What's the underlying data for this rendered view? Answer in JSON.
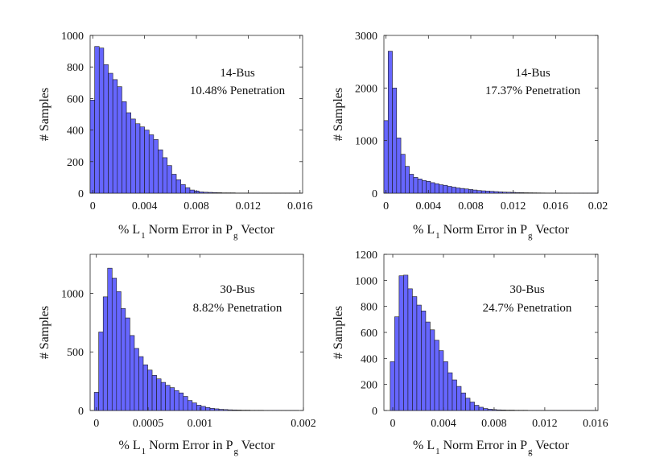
{
  "chart_data": [
    {
      "type": "bar",
      "annotation": [
        "14-Bus",
        "10.48% Penetration"
      ],
      "xlabel": {
        "prefix": "% L",
        "sub1": "1",
        "mid": " Norm Error in P",
        "sub2": "g",
        "suffix": " Vector"
      },
      "ylabel": "# Samples",
      "xlim": [
        -0.0002,
        0.0162
      ],
      "ylim": [
        0,
        1000
      ],
      "xticks": [
        0,
        0.004,
        0.008,
        0.012,
        0.016
      ],
      "xtick_labels": [
        "0",
        "0.004",
        "0.008",
        "0.012",
        "0.016"
      ],
      "yticks": [
        0,
        200,
        400,
        600,
        800,
        1000
      ],
      "ytick_labels": [
        "0",
        "200",
        "400",
        "600",
        "800",
        "1000"
      ],
      "bin_start": -0.0002,
      "bin_width": 0.00035,
      "values": [
        590,
        930,
        920,
        815,
        760,
        720,
        675,
        580,
        510,
        470,
        440,
        420,
        400,
        370,
        340,
        275,
        225,
        175,
        120,
        85,
        55,
        35,
        20,
        14,
        8,
        6,
        5,
        4,
        3,
        2,
        2,
        2,
        1,
        1,
        1,
        1,
        1,
        1,
        1,
        1,
        1,
        1,
        1,
        1,
        1,
        1
      ]
    },
    {
      "type": "bar",
      "annotation": [
        "14-Bus",
        "17.37% Penetration"
      ],
      "xlabel": {
        "prefix": "% L",
        "sub1": "1",
        "mid": " Norm Error in P",
        "sub2": "g",
        "suffix": " Vector"
      },
      "ylabel": "# Samples",
      "xlim": [
        -0.0002,
        0.02
      ],
      "ylim": [
        0,
        3000
      ],
      "xticks": [
        0,
        0.004,
        0.008,
        0.012,
        0.016,
        0.02
      ],
      "xtick_labels": [
        "0",
        "0.004",
        "0.008",
        "0.012",
        "0.016",
        "0.02"
      ],
      "yticks": [
        0,
        1000,
        2000,
        3000
      ],
      "ytick_labels": [
        "0",
        "1000",
        "2000",
        "3000"
      ],
      "bin_start": -0.0002,
      "bin_width": 0.0004,
      "values": [
        1380,
        2700,
        2000,
        1050,
        740,
        510,
        360,
        300,
        270,
        240,
        225,
        200,
        180,
        160,
        150,
        130,
        115,
        100,
        90,
        80,
        70,
        60,
        50,
        45,
        40,
        35,
        30,
        25,
        20,
        18,
        15,
        12,
        10,
        8,
        7,
        6,
        5,
        4,
        3,
        3,
        2,
        2,
        1,
        1,
        1,
        1,
        1,
        1,
        1,
        1,
        1
      ]
    },
    {
      "type": "bar",
      "annotation": [
        "30-Bus",
        "8.82% Penetration"
      ],
      "xlabel": {
        "prefix": "% L",
        "sub1": "1",
        "mid": " Norm Error in P",
        "sub2": "g",
        "suffix": " Vector"
      },
      "ylabel": "# Samples",
      "xlim": [
        -6e-05,
        0.002
      ],
      "ylim": [
        0,
        1333
      ],
      "xticks": [
        0,
        0.0005,
        0.001,
        0.002
      ],
      "xtick_labels": [
        "0",
        "0.0005",
        "0.001",
        "0.002"
      ],
      "yticks": [
        0,
        500,
        1000
      ],
      "ytick_labels": [
        "0",
        "500",
        "1000"
      ],
      "bin_start": -2e-05,
      "bin_width": 4.3e-05,
      "values": [
        155,
        670,
        970,
        1215,
        1130,
        1015,
        870,
        790,
        640,
        530,
        460,
        390,
        345,
        300,
        270,
        240,
        215,
        195,
        170,
        150,
        120,
        85,
        65,
        45,
        35,
        25,
        18,
        14,
        10,
        8,
        6,
        5,
        4,
        3,
        3,
        2,
        2,
        2,
        1,
        1,
        1,
        1,
        1,
        1,
        1,
        1
      ]
    },
    {
      "type": "bar",
      "annotation": [
        "30-Bus",
        "24.7% Penetration"
      ],
      "xlabel": {
        "prefix": "% L",
        "sub1": "1",
        "mid": " Norm Error in P",
        "sub2": "g",
        "suffix": " Vector"
      },
      "ylabel": "# Samples",
      "xlim": [
        -0.0007,
        0.0162
      ],
      "ylim": [
        0,
        1200
      ],
      "xticks": [
        0,
        0.004,
        0.008,
        0.012,
        0.016
      ],
      "xtick_labels": [
        "0",
        "0.004",
        "0.008",
        "0.012",
        "0.016"
      ],
      "yticks": [
        0,
        200,
        400,
        600,
        800,
        1000,
        1200
      ],
      "ytick_labels": [
        "0",
        "200",
        "400",
        "600",
        "800",
        "1000",
        "1200"
      ],
      "bin_start": -0.0002,
      "bin_width": 0.00035,
      "values": [
        375,
        720,
        1035,
        1040,
        935,
        875,
        810,
        765,
        680,
        620,
        540,
        460,
        375,
        290,
        235,
        185,
        135,
        95,
        65,
        40,
        25,
        15,
        10,
        7,
        5,
        4,
        3,
        3,
        2,
        2,
        2,
        1,
        1,
        1,
        1,
        1,
        1,
        1,
        1,
        1,
        1,
        1,
        1,
        1,
        1,
        1
      ]
    }
  ],
  "colors": {
    "bar_fill": "#6666ff",
    "bar_edge": "#1a1a1a",
    "axis": "#262626",
    "background": "#ffffff"
  }
}
